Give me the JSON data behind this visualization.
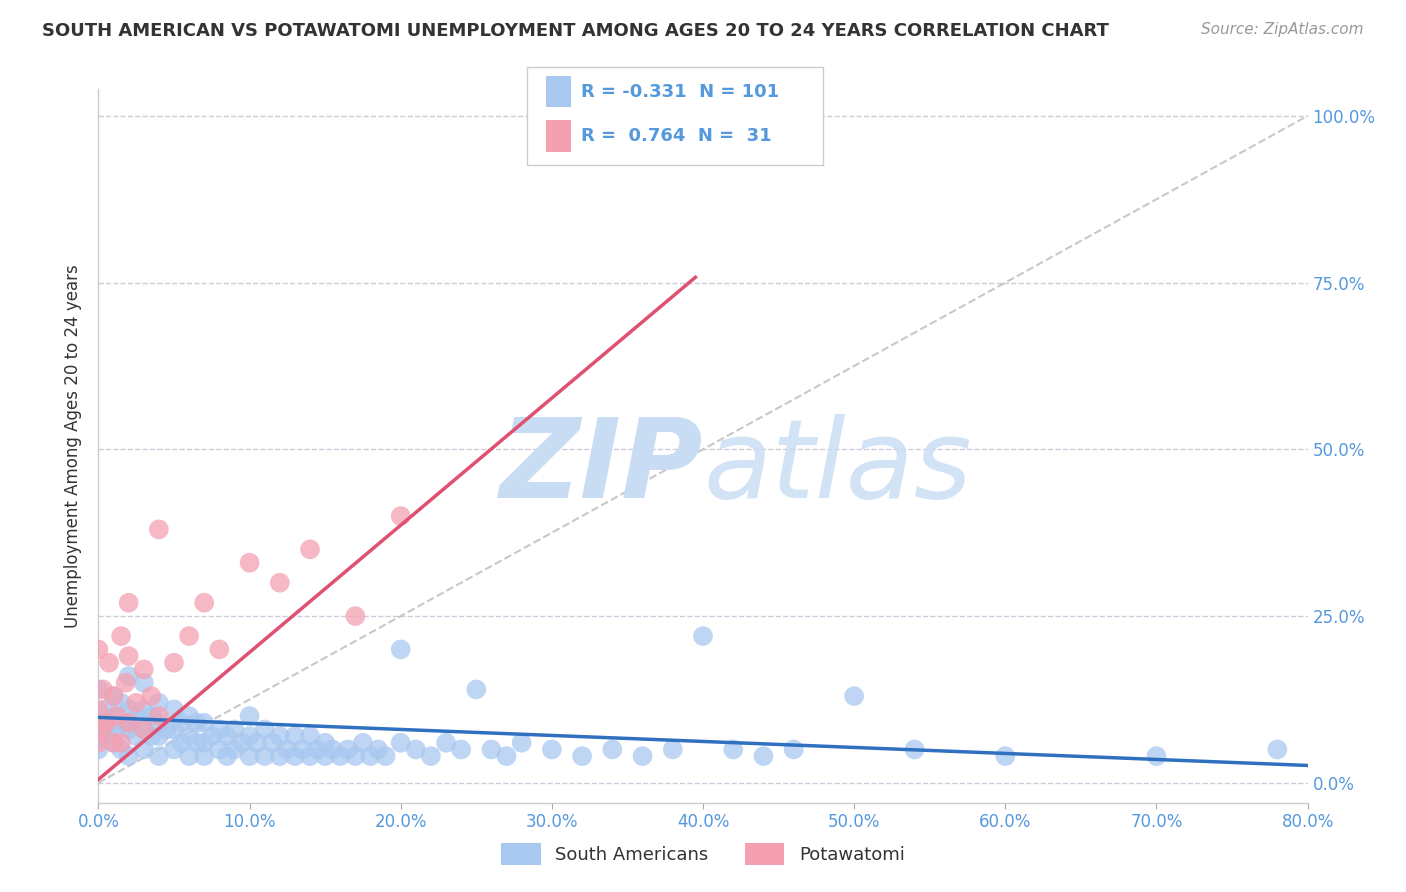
{
  "title": "SOUTH AMERICAN VS POTAWATOMI UNEMPLOYMENT AMONG AGES 20 TO 24 YEARS CORRELATION CHART",
  "source": "Source: ZipAtlas.com",
  "xmin": 0.0,
  "xmax": 0.8,
  "ymin": -0.03,
  "ymax": 1.04,
  "blue_color": "#A8C8F0",
  "pink_color": "#F4A0B0",
  "blue_line_color": "#3070C0",
  "pink_line_color": "#E05070",
  "ref_line_color": "#BBBBBB",
  "watermark_color": "#C8DCF4",
  "legend_r_blue": "-0.331",
  "legend_n_blue": "101",
  "legend_r_pink": "0.764",
  "legend_n_pink": "31",
  "blue_trend_x0": 0.0,
  "blue_trend_x1": 0.8,
  "blue_trend_y0": 0.098,
  "blue_trend_y1": 0.026,
  "pink_trend_x0": 0.0,
  "pink_trend_x1": 0.395,
  "pink_trend_y0": 0.005,
  "pink_trend_y1": 0.758,
  "ref_line_x": [
    0.0,
    0.8
  ],
  "ref_line_y": [
    0.0,
    1.0
  ],
  "ylabel": "Unemployment Among Ages 20 to 24 years",
  "legend_label_blue": "South Americans",
  "legend_label_pink": "Potawatomi",
  "grid_color": "#CCCCDD",
  "background_color": "#FFFFFF",
  "title_color": "#333333",
  "axis_color": "#5599DD",
  "blue_scatter_x": [
    0.0,
    0.0,
    0.0,
    0.003,
    0.005,
    0.007,
    0.01,
    0.01,
    0.01,
    0.012,
    0.015,
    0.015,
    0.018,
    0.02,
    0.02,
    0.02,
    0.02,
    0.025,
    0.025,
    0.03,
    0.03,
    0.03,
    0.03,
    0.035,
    0.035,
    0.04,
    0.04,
    0.04,
    0.04,
    0.045,
    0.05,
    0.05,
    0.05,
    0.055,
    0.055,
    0.06,
    0.06,
    0.06,
    0.065,
    0.065,
    0.07,
    0.07,
    0.07,
    0.075,
    0.08,
    0.08,
    0.085,
    0.085,
    0.09,
    0.09,
    0.095,
    0.1,
    0.1,
    0.1,
    0.105,
    0.11,
    0.11,
    0.115,
    0.12,
    0.12,
    0.125,
    0.13,
    0.13,
    0.135,
    0.14,
    0.14,
    0.145,
    0.15,
    0.15,
    0.155,
    0.16,
    0.165,
    0.17,
    0.175,
    0.18,
    0.185,
    0.19,
    0.2,
    0.2,
    0.21,
    0.22,
    0.23,
    0.24,
    0.25,
    0.26,
    0.27,
    0.28,
    0.3,
    0.32,
    0.34,
    0.36,
    0.38,
    0.4,
    0.42,
    0.44,
    0.46,
    0.5,
    0.54,
    0.6,
    0.7,
    0.78
  ],
  "blue_scatter_y": [
    0.05,
    0.09,
    0.14,
    0.07,
    0.11,
    0.08,
    0.06,
    0.1,
    0.13,
    0.08,
    0.05,
    0.12,
    0.09,
    0.04,
    0.08,
    0.11,
    0.16,
    0.07,
    0.1,
    0.05,
    0.08,
    0.11,
    0.15,
    0.07,
    0.1,
    0.04,
    0.07,
    0.09,
    0.12,
    0.08,
    0.05,
    0.08,
    0.11,
    0.06,
    0.09,
    0.04,
    0.07,
    0.1,
    0.06,
    0.09,
    0.04,
    0.06,
    0.09,
    0.07,
    0.05,
    0.08,
    0.04,
    0.07,
    0.05,
    0.08,
    0.06,
    0.04,
    0.07,
    0.1,
    0.06,
    0.04,
    0.08,
    0.06,
    0.04,
    0.07,
    0.05,
    0.04,
    0.07,
    0.05,
    0.04,
    0.07,
    0.05,
    0.04,
    0.06,
    0.05,
    0.04,
    0.05,
    0.04,
    0.06,
    0.04,
    0.05,
    0.04,
    0.2,
    0.06,
    0.05,
    0.04,
    0.06,
    0.05,
    0.14,
    0.05,
    0.04,
    0.06,
    0.05,
    0.04,
    0.05,
    0.04,
    0.05,
    0.22,
    0.05,
    0.04,
    0.05,
    0.13,
    0.05,
    0.04,
    0.04,
    0.05
  ],
  "pink_scatter_x": [
    0.0,
    0.0,
    0.0,
    0.002,
    0.003,
    0.005,
    0.007,
    0.01,
    0.01,
    0.012,
    0.015,
    0.015,
    0.018,
    0.02,
    0.02,
    0.02,
    0.025,
    0.03,
    0.03,
    0.035,
    0.04,
    0.04,
    0.05,
    0.06,
    0.07,
    0.08,
    0.1,
    0.12,
    0.14,
    0.17,
    0.2
  ],
  "pink_scatter_y": [
    0.06,
    0.11,
    0.2,
    0.08,
    0.14,
    0.09,
    0.18,
    0.06,
    0.13,
    0.1,
    0.06,
    0.22,
    0.15,
    0.09,
    0.19,
    0.27,
    0.12,
    0.08,
    0.17,
    0.13,
    0.38,
    0.1,
    0.18,
    0.22,
    0.27,
    0.2,
    0.33,
    0.3,
    0.35,
    0.25,
    0.4
  ]
}
